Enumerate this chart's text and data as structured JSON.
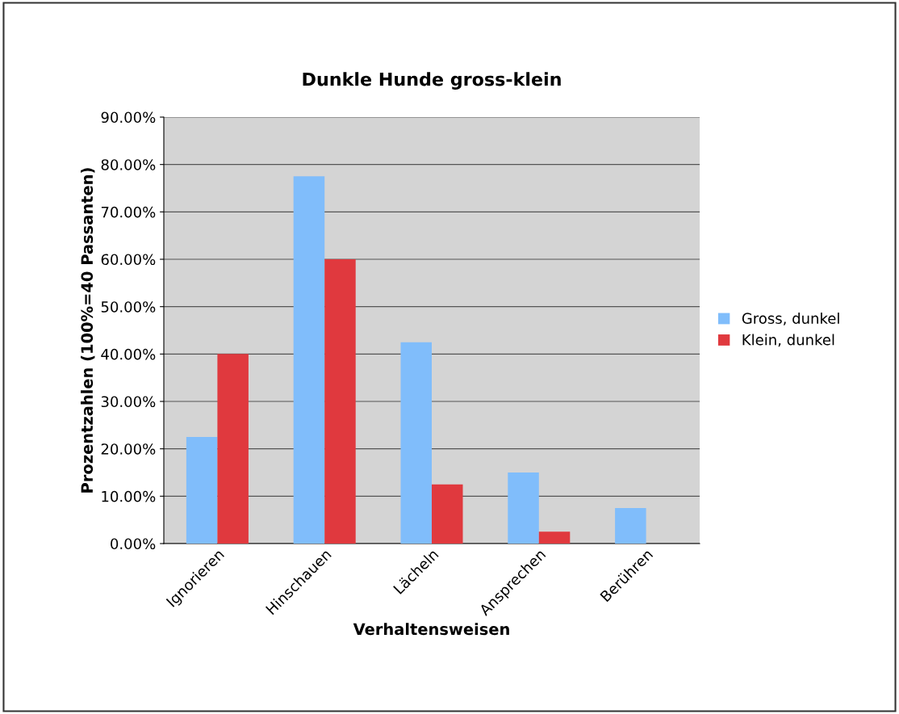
{
  "chart_data": {
    "type": "bar",
    "title": "Dunkle Hunde gross-klein",
    "xlabel": "Verhaltensweisen",
    "ylabel": "Prozentzahlen (100%=40 Passanten)",
    "categories": [
      "Ignorieren",
      "Hinschauen",
      "Lächeln",
      "Ansprechen",
      "Berühren"
    ],
    "series": [
      {
        "name": "Gross, dunkel",
        "color": "#80bdfb",
        "values": [
          22.5,
          77.5,
          42.5,
          15,
          7.5
        ]
      },
      {
        "name": "Klein, dunkel",
        "color": "#e0393e",
        "values": [
          40,
          60,
          12.5,
          2.5,
          0
        ]
      }
    ],
    "ylim": [
      0,
      90
    ],
    "yticks": [
      {
        "value": 0,
        "label": "0.00%"
      },
      {
        "value": 10,
        "label": "10.00%"
      },
      {
        "value": 20,
        "label": "20.00%"
      },
      {
        "value": 30,
        "label": "30.00%"
      },
      {
        "value": 40,
        "label": "40.00%"
      },
      {
        "value": 50,
        "label": "50.00%"
      },
      {
        "value": 60,
        "label": "60.00%"
      },
      {
        "value": 70,
        "label": "70.00%"
      },
      {
        "value": 80,
        "label": "80.00%"
      },
      {
        "value": 90,
        "label": "90.00%"
      }
    ],
    "grid": "y",
    "legend": "right"
  }
}
